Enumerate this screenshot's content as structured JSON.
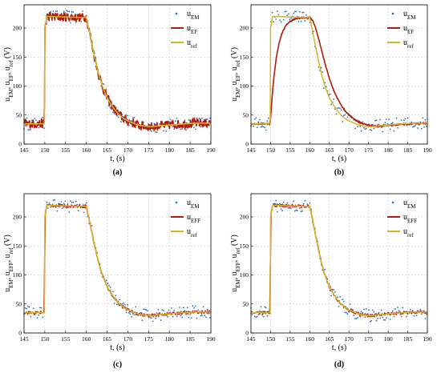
{
  "colors": {
    "em": "#2b6fc6",
    "ef": "#b01c0c",
    "ref": "#d8b62a",
    "grid": "#c8c8c8",
    "axis": "#000000"
  },
  "chart_data": [
    {
      "type": "line",
      "panel_label": "(a)",
      "xlabel": "t, (s)",
      "ylabel_parts": [
        "u",
        "EM",
        ", u",
        "EF",
        ", u",
        "ref",
        " (V)"
      ],
      "xlim": [
        145,
        190
      ],
      "ylim": [
        0,
        240
      ],
      "xticks": [
        145,
        150,
        155,
        160,
        165,
        170,
        175,
        180,
        185,
        190
      ],
      "yticks": [
        0,
        50,
        100,
        150,
        200
      ],
      "grid": true,
      "legend_position": "top-right",
      "series": [
        {
          "name": "u",
          "sub": "EM",
          "key": "em",
          "style": "dots"
        },
        {
          "name": "u",
          "sub": "EF",
          "key": "ef",
          "style": "line",
          "filter": "noisy"
        },
        {
          "name": "u",
          "sub": "ref",
          "key": "ref",
          "style": "line"
        }
      ]
    },
    {
      "type": "line",
      "panel_label": "(b)",
      "xlabel": "t, (s)",
      "ylabel_parts": [
        "u",
        "EM",
        ", u",
        "EF",
        ", u",
        "ref",
        " (V)"
      ],
      "xlim": [
        145,
        190
      ],
      "ylim": [
        0,
        240
      ],
      "xticks": [
        145,
        150,
        155,
        160,
        165,
        170,
        175,
        180,
        185,
        190
      ],
      "yticks": [
        0,
        50,
        100,
        150,
        200
      ],
      "grid": true,
      "legend_position": "top-right",
      "series": [
        {
          "name": "u",
          "sub": "EM",
          "key": "em",
          "style": "dots"
        },
        {
          "name": "u",
          "sub": "EF",
          "key": "ef",
          "style": "line",
          "filter": "lag"
        },
        {
          "name": "u",
          "sub": "ref",
          "key": "ref",
          "style": "line"
        }
      ]
    },
    {
      "type": "line",
      "panel_label": "(c)",
      "xlabel": "t, (s)",
      "ylabel_parts": [
        "u",
        "EM",
        ", u",
        "EFF",
        ", u",
        "ref",
        " (V)"
      ],
      "xlim": [
        145,
        190
      ],
      "ylim": [
        0,
        240
      ],
      "xticks": [
        145,
        150,
        155,
        160,
        165,
        170,
        175,
        180,
        185,
        190
      ],
      "yticks": [
        0,
        50,
        100,
        150,
        200
      ],
      "grid": true,
      "legend_position": "top-right",
      "series": [
        {
          "name": "u",
          "sub": "EM",
          "key": "em",
          "style": "dots"
        },
        {
          "name": "u",
          "sub": "EFF",
          "key": "ef",
          "style": "line",
          "filter": "smooth"
        },
        {
          "name": "u",
          "sub": "ref",
          "key": "ref",
          "style": "line"
        }
      ]
    },
    {
      "type": "line",
      "panel_label": "(d)",
      "xlabel": "t, (s)",
      "ylabel_parts": [
        "u",
        "EM",
        ", u",
        "EFF",
        ", u",
        "ref",
        " (V)"
      ],
      "xlim": [
        145,
        190
      ],
      "ylim": [
        0,
        240
      ],
      "xticks": [
        145,
        150,
        155,
        160,
        165,
        170,
        175,
        180,
        185,
        190
      ],
      "yticks": [
        0,
        50,
        100,
        150,
        200
      ],
      "grid": true,
      "legend_position": "top-right",
      "series": [
        {
          "name": "u",
          "sub": "EM",
          "key": "em",
          "style": "dots"
        },
        {
          "name": "u",
          "sub": "EFF",
          "key": "ef",
          "style": "line",
          "filter": "smooth"
        },
        {
          "name": "u",
          "sub": "ref",
          "key": "ref",
          "style": "line"
        }
      ]
    }
  ],
  "reference_signal": {
    "t": [
      145,
      149.9,
      150,
      150.5,
      160,
      161,
      162,
      163,
      164,
      165,
      166,
      167,
      168,
      169,
      170,
      171,
      172,
      173,
      174,
      175,
      176,
      177,
      178,
      179,
      180,
      182,
      184,
      186,
      188,
      190
    ],
    "u": [
      35,
      35,
      200,
      220,
      218,
      185,
      150,
      120,
      97,
      80,
      68,
      58,
      50,
      44,
      40,
      37,
      34,
      32,
      31,
      30,
      30,
      31,
      32,
      32,
      33,
      34,
      35,
      36,
      36,
      36
    ]
  }
}
